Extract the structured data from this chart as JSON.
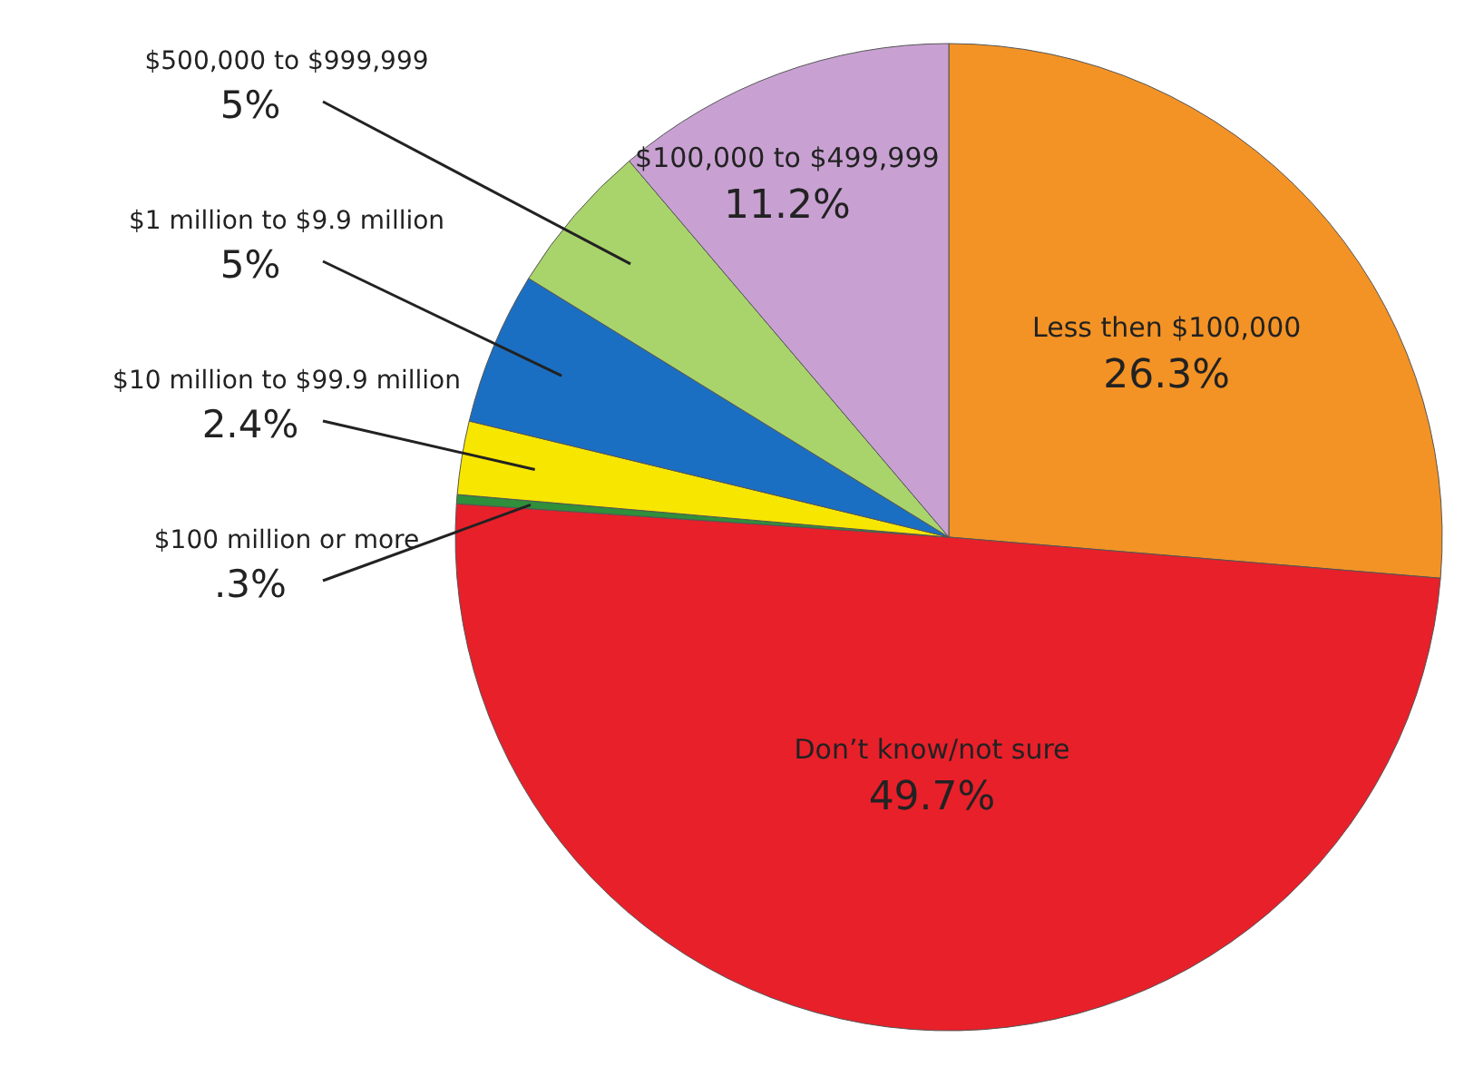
{
  "chart_data": {
    "type": "pie",
    "categories": [
      "Less then $100,000",
      "Don’t know/not sure",
      "$100 million or more",
      "$10 million to $99.9 million",
      "$1 million to $9.9 million",
      "$500,000 to $999,999",
      "$100,000 to $499,999"
    ],
    "values": [
      26.3,
      49.7,
      0.3,
      2.4,
      5,
      5,
      11.2
    ],
    "colors": [
      "#f39325",
      "#e8202a",
      "#2f8f3a",
      "#f7e600",
      "#1b6fc2",
      "#a9d46c",
      "#c8a1d2"
    ],
    "value_labels": [
      "26.3%",
      "49.7%",
      ".3%",
      "2.4%",
      "5%",
      "5%",
      "11.2%"
    ]
  }
}
